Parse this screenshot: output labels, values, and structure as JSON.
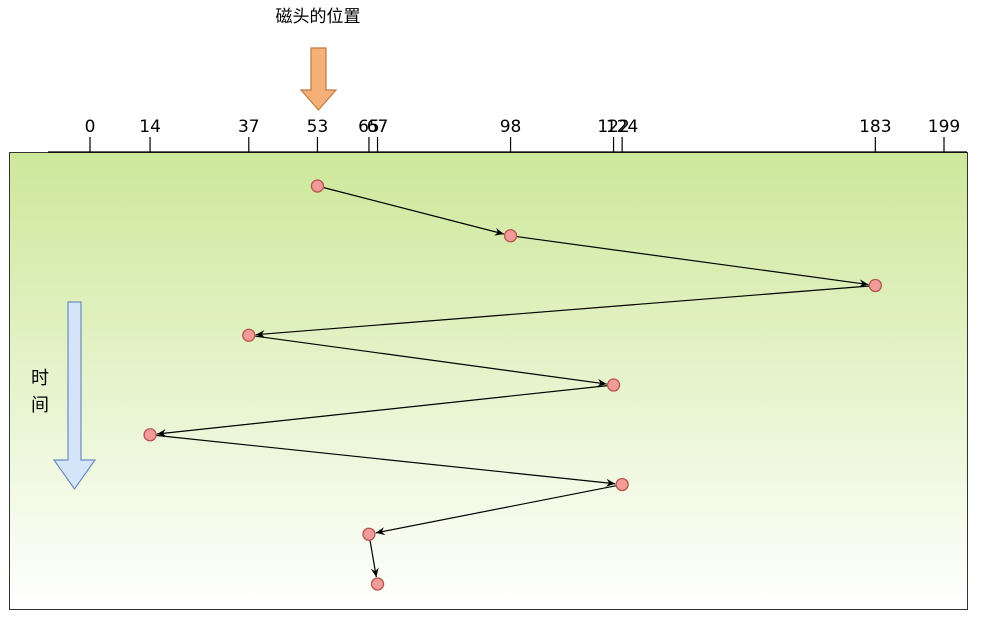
{
  "head_label": "磁头的位置",
  "time_label": [
    "时",
    "间"
  ],
  "axis": {
    "min": 0,
    "max": 199,
    "ticks": [
      0,
      14,
      37,
      53,
      65,
      67,
      98,
      122,
      124,
      183,
      199
    ]
  },
  "head_start": 53,
  "visit_sequence": [
    53,
    98,
    183,
    37,
    122,
    14,
    124,
    65,
    67
  ],
  "colors": {
    "panel_top": "#cde89a",
    "panel_bottom": "#ffffff",
    "node_fill": "#f19c99",
    "node_stroke": "#b85450",
    "head_arrow_fill": "#f5b07a",
    "head_arrow_stroke": "#c27a3e",
    "time_arrow_fill": "#d4e5f9",
    "time_arrow_stroke": "#6c8ebf"
  }
}
